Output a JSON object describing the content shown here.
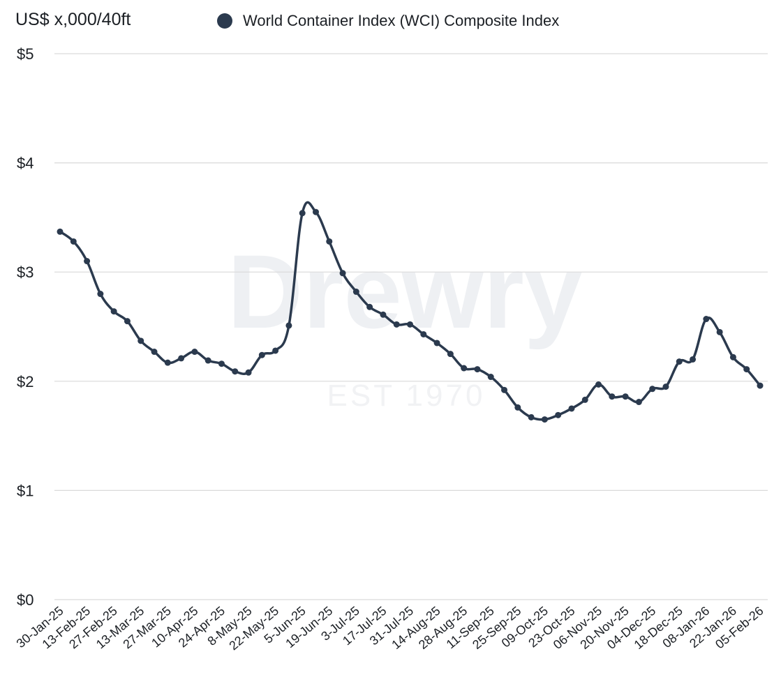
{
  "chart_data": {
    "type": "line",
    "title": "",
    "ylabel": "US$ x,000/40ft",
    "xlabel": "",
    "ylim": [
      0,
      5
    ],
    "yticks": [
      "$0",
      "$1",
      "$2",
      "$3",
      "$4",
      "$5"
    ],
    "grid": true,
    "legend_placement": "top",
    "watermark": [
      "Drewry",
      "EST 1970"
    ],
    "xtick_labels": [
      "30-Jan-25",
      "13-Feb-25",
      "27-Feb-25",
      "13-Mar-25",
      "27-Mar-25",
      "10-Apr-25",
      "24-Apr-25",
      "8-May-25",
      "22-May-25",
      "5-Jun-25",
      "19-Jun-25",
      "3-Jul-25",
      "17-Jul-25",
      "31-Jul-25",
      "14-Aug-25",
      "28-Aug-25",
      "11-Sep-25",
      "25-Sep-25",
      "09-Oct-25",
      "23-Oct-25",
      "06-Nov-25",
      "20-Nov-25",
      "04-Dec-25",
      "18-Dec-25",
      "08-Jan-26",
      "22-Jan-26",
      "05-Feb-26"
    ],
    "series": [
      {
        "name": "World Container Index (WCI) Composite Index",
        "color": "#2b3a4e",
        "values": [
          3.37,
          3.28,
          3.1,
          2.8,
          2.64,
          2.55,
          2.37,
          2.27,
          2.17,
          2.21,
          2.27,
          2.19,
          2.16,
          2.09,
          2.08,
          2.24,
          2.28,
          2.51,
          3.54,
          3.55,
          3.28,
          2.99,
          2.82,
          2.68,
          2.61,
          2.52,
          2.52,
          2.43,
          2.35,
          2.25,
          2.12,
          2.11,
          2.04,
          1.92,
          1.76,
          1.67,
          1.65,
          1.69,
          1.75,
          1.83,
          1.97,
          1.86,
          1.86,
          1.81,
          1.93,
          1.95,
          2.18,
          2.2,
          2.57,
          2.45,
          2.22,
          2.11,
          1.96
        ]
      }
    ]
  }
}
